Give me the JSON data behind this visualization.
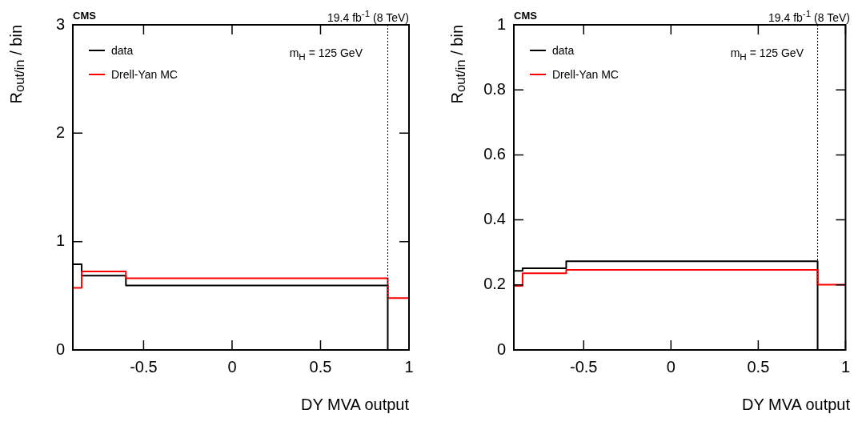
{
  "chart_data": [
    {
      "type": "histogram",
      "title": "CMS",
      "subtitle": "19.4 fb$^{-1}$ (8 TeV)",
      "xlabel": "DY MVA output",
      "ylabel": "R$_{out/in}$ / bin",
      "annotations": [
        "m$_{H}$ = 125 GeV"
      ],
      "bins": [
        -0.9,
        -0.85,
        -0.6,
        0.88,
        1
      ],
      "series": [
        {
          "name": "data",
          "color": "#000000",
          "values": [
            0.79,
            0.685,
            0.595,
            0
          ]
        },
        {
          "name": "Drell-Yan MC",
          "color": "#ff0000",
          "values": [
            0.573,
            0.725,
            0.661,
            0.478
          ]
        }
      ],
      "ref_lines": [
        {
          "axis": "x",
          "value": 0.88,
          "color": "#000000",
          "line_style": "dotted"
        }
      ],
      "xlim": [
        -0.9,
        1
      ],
      "ylim": [
        0,
        3
      ],
      "xticks": [
        -0.5,
        0,
        0.5,
        1
      ],
      "yticks": [
        0,
        1,
        2,
        3
      ],
      "legend": "top left",
      "grid": false
    },
    {
      "type": "histogram",
      "title": "CMS",
      "subtitle": "19.4 fb$^{-1}$ (8 TeV)",
      "xlabel": "DY MVA output",
      "ylabel": "R$_{out/in}$ / bin",
      "annotations": [
        "m$_{H}$ = 125 GeV"
      ],
      "bins": [
        -0.9,
        -0.85,
        -0.6,
        0.84,
        1
      ],
      "series": [
        {
          "name": "data",
          "color": "#000000",
          "values": [
            0.243,
            0.251,
            0.273,
            0
          ]
        },
        {
          "name": "Drell-Yan MC",
          "color": "#ff0000",
          "values": [
            0.197,
            0.236,
            0.246,
            0.201
          ]
        }
      ],
      "ref_lines": [
        {
          "axis": "x",
          "value": 0.84,
          "color": "#000000",
          "line_style": "dotted"
        }
      ],
      "xlim": [
        -0.9,
        1
      ],
      "ylim": [
        0,
        1
      ],
      "xticks": [
        -0.5,
        0,
        0.5,
        1
      ],
      "yticks": [
        0,
        0.2,
        0.4,
        0.6,
        0.8,
        1
      ],
      "legend": "top left",
      "grid": false
    }
  ]
}
